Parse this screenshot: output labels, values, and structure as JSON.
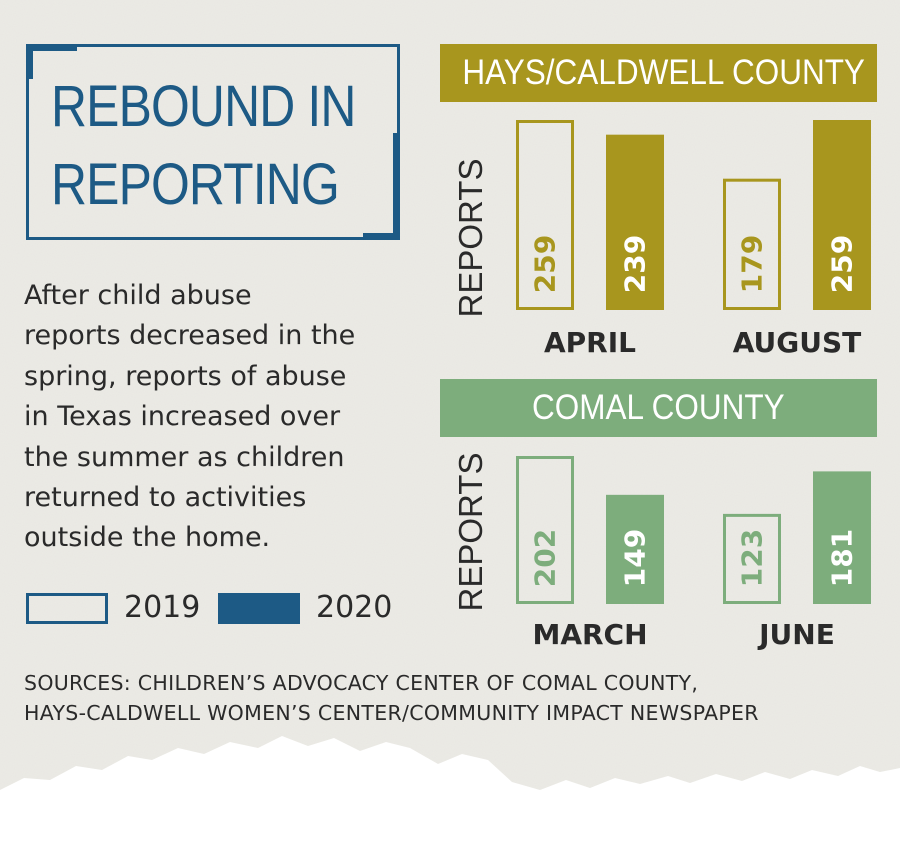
{
  "title": {
    "line1": "REBOUND IN",
    "line2": "REPORTING"
  },
  "description": [
    "After child abuse",
    "reports decreased in the",
    "spring, reports of abuse",
    "in Texas increased over",
    "the summer as children",
    "returned to activities",
    "outside the home."
  ],
  "legend": {
    "y2019": "2019",
    "y2020": "2020"
  },
  "sources": [
    "SOURCES: CHILDREN’S ADVOCACY CENTER OF COMAL COUNTY,",
    "HAYS-CALDWELL WOMEN’S CENTER/COMMUNITY IMPACT NEWSPAPER"
  ],
  "colors": {
    "hays": "#a8961e",
    "comal": "#7dad7c",
    "legend": "#1d5a85",
    "text": "#2a2a2a"
  },
  "chart_data": [
    {
      "type": "bar",
      "title": "HAYS/CALDWELL COUNTY",
      "ylabel": "REPORTS",
      "categories": [
        "APRIL",
        "AUGUST"
      ],
      "series": [
        {
          "name": "2019",
          "values": [
            259,
            179
          ]
        },
        {
          "name": "2020",
          "values": [
            239,
            259
          ]
        }
      ]
    },
    {
      "type": "bar",
      "title": "COMAL COUNTY",
      "ylabel": "REPORTS",
      "categories": [
        "MARCH",
        "JUNE"
      ],
      "series": [
        {
          "name": "2019",
          "values": [
            202,
            123
          ]
        },
        {
          "name": "2020",
          "values": [
            149,
            181
          ]
        }
      ]
    }
  ]
}
